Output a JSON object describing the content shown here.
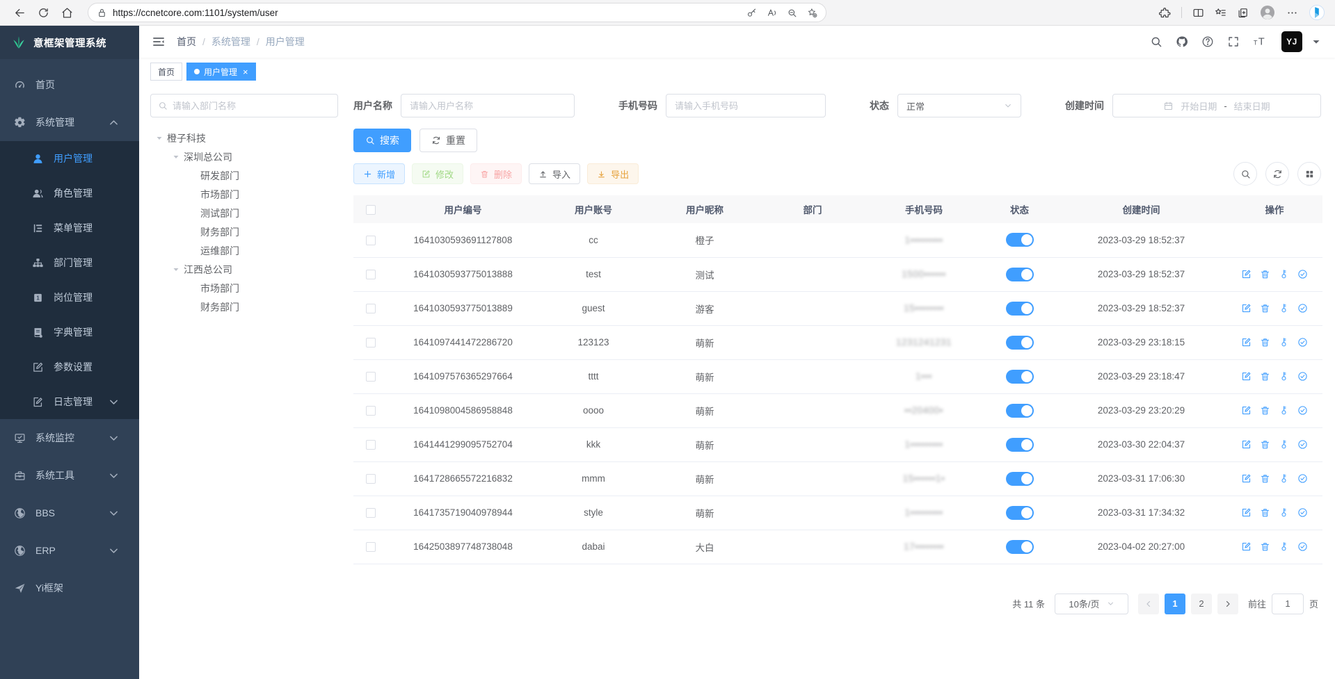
{
  "colors": {
    "accent": "#409eff",
    "sidebar_bg": "#304156",
    "submenu_bg": "#1f2d3d",
    "success": "#67c23a",
    "danger": "#f56c6c",
    "warning": "#e6a23c"
  },
  "browser": {
    "url": "https://ccnetcore.com:1101/system/user",
    "left_icons": [
      "back-arrow-icon",
      "refresh-icon",
      "home-icon"
    ],
    "pill_icons": [
      "lock-icon",
      "password-key-icon",
      "read-aloud-icon",
      "zoom-out-icon",
      "favorite-add-icon"
    ],
    "right_icons": [
      "extensions-icon",
      "split-screen-icon",
      "favorites-bar-icon",
      "collections-icon",
      "profile-icon",
      "more-icon",
      "copilot-icon"
    ]
  },
  "sidebar": {
    "logo_title": "意框架管理系统",
    "logo_icon": "leaf-logo-icon",
    "menu": [
      {
        "key": "home",
        "label": "首页",
        "icon": "dashboard-icon",
        "level": 0
      },
      {
        "key": "system",
        "label": "系统管理",
        "icon": "gear-icon",
        "level": 0,
        "expanded": true,
        "chevron": "up"
      },
      {
        "key": "user",
        "label": "用户管理",
        "icon": "user-icon",
        "level": 1,
        "active": true
      },
      {
        "key": "role",
        "label": "角色管理",
        "icon": "users-icon",
        "level": 1
      },
      {
        "key": "menu",
        "label": "菜单管理",
        "icon": "menu-tree-icon",
        "level": 1
      },
      {
        "key": "dept",
        "label": "部门管理",
        "icon": "org-icon",
        "level": 1
      },
      {
        "key": "post",
        "label": "岗位管理",
        "icon": "badge-icon",
        "level": 1
      },
      {
        "key": "dict",
        "label": "字典管理",
        "icon": "book-icon",
        "level": 1
      },
      {
        "key": "param",
        "label": "参数设置",
        "icon": "edit-square-icon",
        "level": 1
      },
      {
        "key": "log",
        "label": "日志管理",
        "icon": "log-icon",
        "level": 1,
        "chevron": "down"
      },
      {
        "key": "monitor",
        "label": "系统监控",
        "icon": "monitor-icon",
        "level": 0,
        "chevron": "down"
      },
      {
        "key": "tool",
        "label": "系统工具",
        "icon": "toolbox-icon",
        "level": 0,
        "chevron": "down"
      },
      {
        "key": "bbs",
        "label": "BBS",
        "icon": "globe-icon",
        "level": 0,
        "chevron": "down"
      },
      {
        "key": "erp",
        "label": "ERP",
        "icon": "globe-icon",
        "level": 0,
        "chevron": "down"
      },
      {
        "key": "yiframe",
        "label": "Yi框架",
        "icon": "plane-icon",
        "level": 0
      }
    ]
  },
  "navbar": {
    "breadcrumb": [
      "首页",
      "系统管理",
      "用户管理"
    ],
    "right_icons": [
      "search-icon",
      "github-icon",
      "help-icon",
      "fullscreen-icon",
      "font-size-icon"
    ],
    "avatar_text": "YJ"
  },
  "tags": [
    {
      "label": "首页",
      "active": false,
      "closable": false
    },
    {
      "label": "用户管理",
      "active": true,
      "closable": true
    }
  ],
  "dept": {
    "search_placeholder": "请输入部门名称",
    "tree": [
      {
        "label": "橙子科技",
        "level": 0,
        "expanded": true
      },
      {
        "label": "深圳总公司",
        "level": 1,
        "expanded": true
      },
      {
        "label": "研发部门",
        "level": 2
      },
      {
        "label": "市场部门",
        "level": 2
      },
      {
        "label": "测试部门",
        "level": 2
      },
      {
        "label": "财务部门",
        "level": 2
      },
      {
        "label": "运维部门",
        "level": 2
      },
      {
        "label": "江西总公司",
        "level": 1,
        "expanded": true
      },
      {
        "label": "市场部门",
        "level": 2
      },
      {
        "label": "财务部门",
        "level": 2
      }
    ]
  },
  "filters": {
    "username": {
      "label": "用户名称",
      "placeholder": "请输入用户名称",
      "value": ""
    },
    "phone": {
      "label": "手机号码",
      "placeholder": "请输入手机号码",
      "value": ""
    },
    "status": {
      "label": "状态",
      "value": "正常"
    },
    "created": {
      "label": "创建时间",
      "start_placeholder": "开始日期",
      "separator": "-",
      "end_placeholder": "结束日期"
    },
    "search_label": "搜索",
    "reset_label": "重置"
  },
  "toolbar": {
    "add": "新增",
    "edit": "修改",
    "del": "删除",
    "imp": "导入",
    "exp": "导出"
  },
  "table": {
    "columns": [
      "用户编号",
      "用户账号",
      "用户昵称",
      "部门",
      "手机号码",
      "状态",
      "创建时间",
      "操作"
    ],
    "op_icons": [
      "edit-square-icon",
      "trash-icon",
      "reset-password-key-icon",
      "check-circle-icon"
    ],
    "rows": [
      {
        "id": "1641030593691127808",
        "account": "cc",
        "nickname": "橙子",
        "dept": "",
        "phone": "1•••••••••",
        "status": true,
        "created": "2023-03-29 18:52:37",
        "ops": false
      },
      {
        "id": "1641030593775013888",
        "account": "test",
        "nickname": "测试",
        "dept": "",
        "phone": "1500••••••",
        "status": true,
        "created": "2023-03-29 18:52:37",
        "ops": true
      },
      {
        "id": "1641030593775013889",
        "account": "guest",
        "nickname": "游客",
        "dept": "",
        "phone": "15••••••••",
        "status": true,
        "created": "2023-03-29 18:52:37",
        "ops": true
      },
      {
        "id": "1641097441472286720",
        "account": "123123",
        "nickname": "萌新",
        "dept": "",
        "phone": "1231241231",
        "status": true,
        "created": "2023-03-29 23:18:15",
        "ops": true
      },
      {
        "id": "1641097576365297664",
        "account": "tttt",
        "nickname": "萌新",
        "dept": "",
        "phone": "1•••",
        "status": true,
        "created": "2023-03-29 23:18:47",
        "ops": true
      },
      {
        "id": "1641098004586958848",
        "account": "oooo",
        "nickname": "萌新",
        "dept": "",
        "phone": "••20400•",
        "status": true,
        "created": "2023-03-29 23:20:29",
        "ops": true
      },
      {
        "id": "1641441299095752704",
        "account": "kkk",
        "nickname": "萌新",
        "dept": "",
        "phone": "1•••••••••",
        "status": true,
        "created": "2023-03-30 22:04:37",
        "ops": true
      },
      {
        "id": "1641728665572216832",
        "account": "mmm",
        "nickname": "萌新",
        "dept": "",
        "phone": "15••••••1•",
        "status": true,
        "created": "2023-03-31 17:06:30",
        "ops": true
      },
      {
        "id": "1641735719040978944",
        "account": "style",
        "nickname": "萌新",
        "dept": "",
        "phone": "1•••••••••",
        "status": true,
        "created": "2023-03-31 17:34:32",
        "ops": true
      },
      {
        "id": "1642503897748738048",
        "account": "dabai",
        "nickname": "大白",
        "dept": "",
        "phone": "17••••••••",
        "status": true,
        "created": "2023-04-02 20:27:00",
        "ops": true
      }
    ]
  },
  "pagination": {
    "total_text": "共 11 条",
    "page_size": "10条/页",
    "pages": [
      "1",
      "2"
    ],
    "active_page": "1",
    "goto_label": "前往",
    "goto_value": "1",
    "page_unit": "页"
  }
}
